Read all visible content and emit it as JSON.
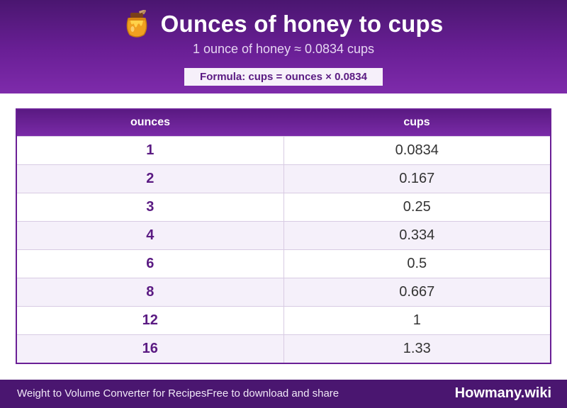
{
  "header": {
    "title": "Ounces of honey to cups",
    "icon": "honey-pot-icon",
    "subtitle": "1 ounce of honey ≈ 0.0834 cups",
    "formula": "Formula: cups = ounces × 0.0834"
  },
  "table": {
    "columns": [
      "ounces",
      "cups"
    ],
    "rows": [
      {
        "ounces": "1",
        "cups": "0.0834"
      },
      {
        "ounces": "2",
        "cups": "0.167"
      },
      {
        "ounces": "3",
        "cups": "0.25"
      },
      {
        "ounces": "4",
        "cups": "0.334"
      },
      {
        "ounces": "6",
        "cups": "0.5"
      },
      {
        "ounces": "8",
        "cups": "0.667"
      },
      {
        "ounces": "12",
        "cups": "1"
      },
      {
        "ounces": "16",
        "cups": "1.33"
      }
    ]
  },
  "footer": {
    "left_text": "Weight to Volume Converter for RecipesFree to download and share",
    "brand": "Howmany.wiki"
  },
  "colors": {
    "primary": "#6a1f96",
    "header_dark": "#4a1670",
    "accent_text": "#5a1a82"
  }
}
